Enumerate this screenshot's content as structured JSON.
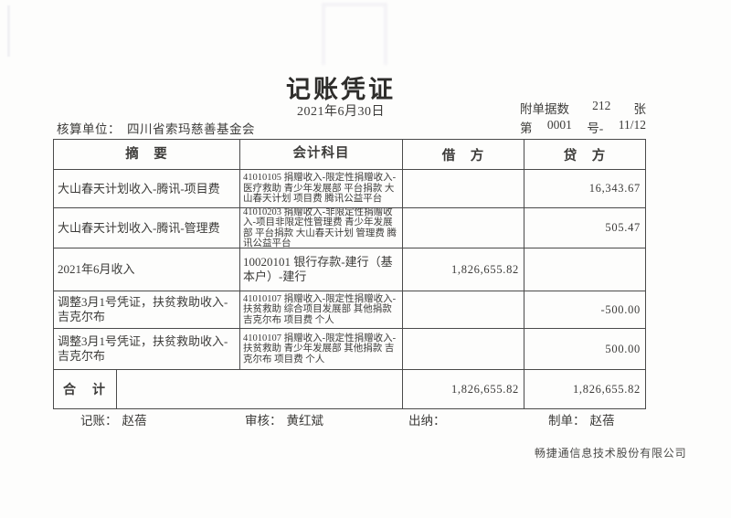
{
  "page": {
    "title": "记账凭证",
    "date": "2021年6月30日",
    "attachment": {
      "label": "附单据数",
      "count": "212",
      "unit": "张"
    },
    "doc_no": {
      "prefix": "第",
      "number": "0001",
      "middle": "号-",
      "page": "11/12"
    },
    "unit": {
      "label": "核算单位：",
      "name": "四川省索玛慈善基金会"
    }
  },
  "table": {
    "headers": {
      "summary": "摘　要",
      "subject": "会计科目",
      "debit": "借　方",
      "credit": "贷　方"
    },
    "rows": [
      {
        "summary": "大山春天计划收入-腾讯-项目费",
        "subject": "41010105 捐赠收入-限定性捐赠收入-医疗救助 青少年发展部 平台捐款 大山春天计划 项目费 腾讯公益平台",
        "debit": "",
        "credit": "16,343.67"
      },
      {
        "summary": "大山春天计划收入-腾讯-管理费",
        "subject": "41010203 捐赠收入-非限定性捐赠收入-项目非限定性管理费 青少年发展部 平台捐款 大山春天计划 管理费 腾讯公益平台",
        "debit": "",
        "credit": "505.47"
      },
      {
        "summary": "2021年6月收入",
        "subject": "10020101 银行存款-建行（基本户）-建行",
        "debit": "1,826,655.82",
        "credit": ""
      },
      {
        "summary": "调整3月1号凭证，扶贫救助收入-吉克尔布",
        "subject": "41010107 捐赠收入-限定性捐赠收入-扶贫救助 综合项目发展部 其他捐款 吉克尔布 项目费 个人",
        "debit": "",
        "credit": "-500.00"
      },
      {
        "summary": "调整3月1号凭证，扶贫救助收入-吉克尔布",
        "subject": "41010107 捐赠收入-限定性捐赠收入-扶贫救助 青少年发展部 其他捐款 吉克尔布 项目费 个人",
        "debit": "",
        "credit": "500.00"
      }
    ],
    "total": {
      "label": "合　计",
      "debit": "1,826,655.82",
      "credit": "1,826,655.82"
    }
  },
  "signatures": [
    {
      "label": "记账：",
      "name": "赵蓓"
    },
    {
      "label": "审核：",
      "name": "黄红斌"
    },
    {
      "label": "出纳：",
      "name": ""
    },
    {
      "label": "制单：",
      "name": "赵蓓"
    }
  ],
  "vendor": "畅捷通信息技术股份有限公司",
  "colors": {
    "text": "#3c3b39",
    "border": "#4a4a4a",
    "background": "#fdfdfc"
  }
}
